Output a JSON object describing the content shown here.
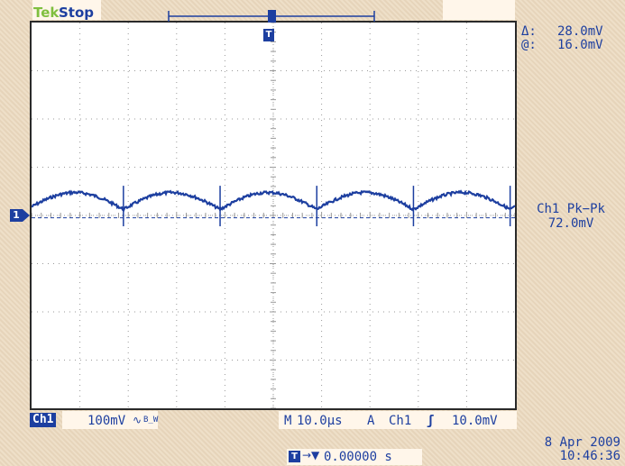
{
  "header": {
    "brand": "Tek",
    "state": "Stop"
  },
  "cursor_readout": {
    "delta_label": "Δ:",
    "delta_value": "28.0mV",
    "at_label": "@:",
    "at_value": "16.0mV"
  },
  "measurement": {
    "label": "Ch1 Pk−Pk",
    "value": "72.0mV"
  },
  "channel": {
    "badge": "Ch1",
    "marker": "1",
    "volts_div": "100mV",
    "coupling_symbol": "∿",
    "bw_symbol": "B_W"
  },
  "timebase": {
    "prefix": "M",
    "time_div": "10.0µs",
    "trigger_mode": "A",
    "trigger_source": "Ch1",
    "slope_symbol": "ʃ",
    "trigger_level": "10.0mV"
  },
  "trigger_position": {
    "icon": "T",
    "arrow": "→▼",
    "value": "0.00000 s"
  },
  "datetime": {
    "date": "8 Apr 2009",
    "time": "10:46:36"
  },
  "colors": {
    "trace": "#1d3fa0",
    "grid": "#9a9a9a",
    "screen": "#ffffff",
    "bezel": "#ecdcc4"
  },
  "waveform": {
    "cycles": 5,
    "ripple_fraction_of_div": 0.35
  }
}
